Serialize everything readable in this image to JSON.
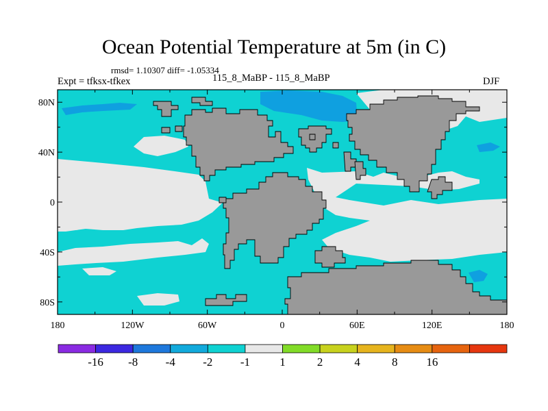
{
  "title": "Ocean Potential Temperature at 5m (in C)",
  "stats": "rmsd= 1.10307 diff= -1.05334",
  "left_label": "Expt = tfksx-tfkex",
  "center_label": "115_8_MaBP - 115_8_MaBP",
  "right_label": "DJF",
  "colors": {
    "land": "#999999",
    "ocean_neg1": "#0fd2d2",
    "ocean_neg2": "#0fa0e0",
    "ocean_neutral": "#e8e8e8",
    "frame": "#000000"
  },
  "map": {
    "lon_range": [
      -180,
      180
    ],
    "lat_range": [
      -90,
      90
    ],
    "lon_ticks": [
      {
        "value": -180,
        "label": "180"
      },
      {
        "value": -120,
        "label": "120W"
      },
      {
        "value": -60,
        "label": "60W"
      },
      {
        "value": 0,
        "label": "0"
      },
      {
        "value": 60,
        "label": "60E"
      },
      {
        "value": 120,
        "label": "120E"
      },
      {
        "value": 180,
        "label": "180"
      }
    ],
    "lat_ticks": [
      {
        "value": 80,
        "label": "80N"
      },
      {
        "value": 40,
        "label": "40N"
      },
      {
        "value": 0,
        "label": "0"
      },
      {
        "value": -40,
        "label": "40S"
      },
      {
        "value": -80,
        "label": "80S"
      }
    ]
  },
  "colorbar": {
    "colors": [
      "#8a2be2",
      "#3c28e0",
      "#1e78dc",
      "#12aadc",
      "#0fd2d2",
      "#e8e8e8",
      "#82dc28",
      "#c8d21e",
      "#e6b41e",
      "#e68c14",
      "#e6640f",
      "#e6370f"
    ],
    "labels": [
      "-16",
      "-8",
      "-4",
      "-2",
      "-1",
      "1",
      "2",
      "4",
      "8",
      "16"
    ]
  }
}
